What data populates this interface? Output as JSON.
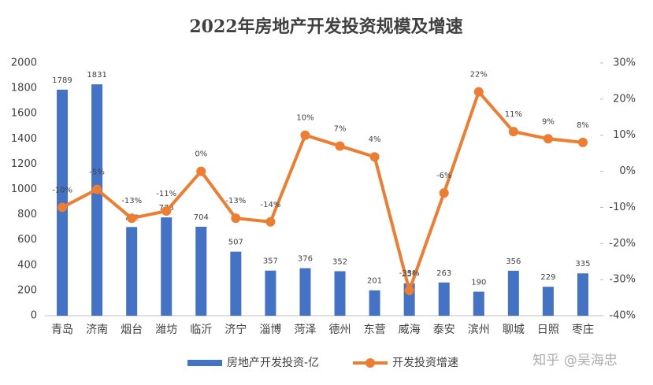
{
  "chart_data": {
    "type": "bar-line",
    "title": "2022年房地产开发投资规模及增速",
    "categories": [
      "青岛",
      "济南",
      "烟台",
      "潍坊",
      "临沂",
      "济宁",
      "淄博",
      "菏泽",
      "德州",
      "东营",
      "威海",
      "泰安",
      "滨州",
      "聊城",
      "日照",
      "枣庄"
    ],
    "series": [
      {
        "name": "房地产开发投资-亿",
        "type": "bar",
        "color": "#4472c4",
        "values": [
          1789,
          1831,
          702,
          778,
          704,
          507,
          357,
          376,
          352,
          201,
          256,
          263,
          190,
          356,
          229,
          335
        ]
      },
      {
        "name": "开发投资增速",
        "type": "line",
        "axis": "y2",
        "color": "#ed7d31",
        "values": [
          -10,
          -5,
          -13,
          -11,
          0,
          -13,
          -14,
          10,
          7,
          4,
          -33,
          -6,
          22,
          11,
          9,
          8
        ],
        "value_labels": [
          "-10%",
          "-5%",
          "-13%",
          "-11%",
          "0%",
          "-13%",
          "-14%",
          "10%",
          "7%",
          "4%",
          "-33%",
          "-6%",
          "22%",
          "11%",
          "9%",
          "8%"
        ]
      }
    ],
    "ylim": [
      0,
      2000
    ],
    "yticks": [
      0,
      200,
      400,
      600,
      800,
      1000,
      1200,
      1400,
      1600,
      1800,
      2000
    ],
    "y2lim": [
      -40,
      30
    ],
    "y2ticks": [
      {
        "value": -40,
        "label": "-40%"
      },
      {
        "value": -30,
        "label": "-30%"
      },
      {
        "value": -20,
        "label": "-20%"
      },
      {
        "value": -10,
        "label": "-10%"
      },
      {
        "value": 0,
        "label": "0%"
      },
      {
        "value": 10,
        "label": "10%"
      },
      {
        "value": 20,
        "label": "20%"
      },
      {
        "value": 30,
        "label": "30%"
      }
    ],
    "grid": false,
    "legend": "bottom",
    "watermark": "知乎 @吴海忠"
  }
}
